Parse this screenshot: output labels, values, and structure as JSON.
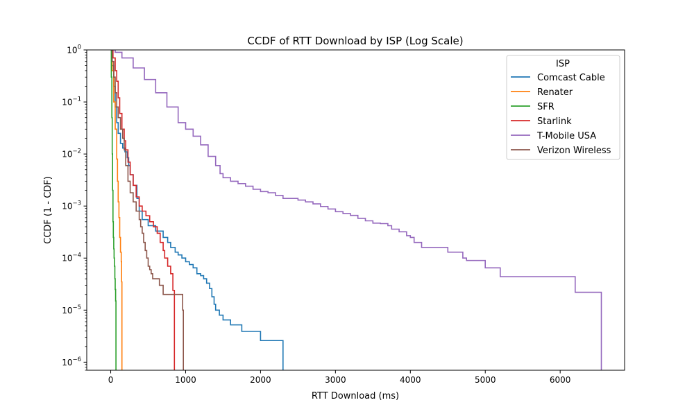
{
  "chart_data": {
    "type": "line",
    "title": "CCDF of RTT Download by ISP (Log Scale)",
    "xlabel": "RTT Download (ms)",
    "ylabel": "CCDF (1 - CDF)",
    "xlim": [
      -320,
      6860
    ],
    "ylim": [
      7e-07,
      1
    ],
    "y_scale": "log",
    "step": true,
    "grid": false,
    "x_ticks": [
      0,
      1000,
      2000,
      3000,
      4000,
      5000,
      6000
    ],
    "x_tick_labels": [
      "0",
      "1000",
      "2000",
      "3000",
      "4000",
      "5000",
      "6000"
    ],
    "y_ticks": [
      1e-06,
      1e-05,
      0.0001,
      0.001,
      0.01,
      0.1,
      1
    ],
    "y_tick_base": [
      "10",
      "10",
      "10",
      "10",
      "10",
      "10",
      "10"
    ],
    "y_tick_exp": [
      "−6",
      "−5",
      "−4",
      "−3",
      "−2",
      "−1",
      "0"
    ],
    "y_tick_plain": [
      null,
      null,
      null,
      null,
      null,
      null,
      "0"
    ],
    "legend": {
      "title": "ISP",
      "position": "top-right"
    },
    "series": [
      {
        "name": "Comcast Cable",
        "color": "#1f77b4",
        "points": [
          [
            0,
            1
          ],
          [
            20,
            0.5
          ],
          [
            40,
            0.2
          ],
          [
            60,
            0.08
          ],
          [
            80,
            0.04
          ],
          [
            100,
            0.025
          ],
          [
            130,
            0.016
          ],
          [
            160,
            0.013
          ],
          [
            190,
            0.011
          ],
          [
            220,
            0.0085
          ],
          [
            240,
            0.006
          ],
          [
            260,
            0.004
          ],
          [
            300,
            0.0025
          ],
          [
            350,
            0.0014
          ],
          [
            380,
            0.0008
          ],
          [
            420,
            0.00055
          ],
          [
            500,
            0.00042
          ],
          [
            600,
            0.00033
          ],
          [
            700,
            0.00025
          ],
          [
            760,
            0.0002
          ],
          [
            800,
            0.00016
          ],
          [
            860,
            0.00013
          ],
          [
            900,
            0.000115
          ],
          [
            950,
            0.0001
          ],
          [
            1000,
            8.5e-05
          ],
          [
            1050,
            7.5e-05
          ],
          [
            1100,
            6.5e-05
          ],
          [
            1150,
            5e-05
          ],
          [
            1200,
            4.6e-05
          ],
          [
            1240,
            4e-05
          ],
          [
            1280,
            3.3e-05
          ],
          [
            1320,
            2.6e-05
          ],
          [
            1350,
            1.8e-05
          ],
          [
            1380,
            1.3e-05
          ],
          [
            1400,
            1e-05
          ],
          [
            1450,
            8e-06
          ],
          [
            1500,
            6.5e-06
          ],
          [
            1600,
            5.2e-06
          ],
          [
            1750,
            3.9e-06
          ],
          [
            2000,
            2.6e-06
          ],
          [
            2300,
            1.3e-06
          ],
          [
            2300,
            7e-07
          ]
        ]
      },
      {
        "name": "Renater",
        "color": "#ff7f0e",
        "points": [
          [
            0,
            1
          ],
          [
            20,
            0.4
          ],
          [
            40,
            0.1
          ],
          [
            60,
            0.03
          ],
          [
            80,
            0.008
          ],
          [
            90,
            0.003
          ],
          [
            100,
            0.0012
          ],
          [
            110,
            0.0006
          ],
          [
            120,
            0.00025
          ],
          [
            130,
            0.00013
          ],
          [
            140,
            8.5e-05
          ],
          [
            145,
            3.5e-05
          ],
          [
            150,
            1.2e-05
          ],
          [
            150,
            7e-07
          ]
        ]
      },
      {
        "name": "SFR",
        "color": "#2ca02c",
        "points": [
          [
            0,
            1
          ],
          [
            8,
            0.3
          ],
          [
            15,
            0.05
          ],
          [
            20,
            0.01
          ],
          [
            25,
            0.002
          ],
          [
            30,
            0.0005
          ],
          [
            35,
            0.00025
          ],
          [
            40,
            0.00015
          ],
          [
            45,
            0.0001
          ],
          [
            50,
            7e-05
          ],
          [
            55,
            4e-05
          ],
          [
            60,
            2.5e-05
          ],
          [
            65,
            1.5e-05
          ],
          [
            70,
            8e-06
          ],
          [
            70,
            7e-07
          ]
        ]
      },
      {
        "name": "Starlink",
        "color": "#d62728",
        "points": [
          [
            0,
            1
          ],
          [
            30,
            0.7
          ],
          [
            60,
            0.4
          ],
          [
            80,
            0.25
          ],
          [
            100,
            0.12
          ],
          [
            120,
            0.06
          ],
          [
            150,
            0.03
          ],
          [
            180,
            0.018
          ],
          [
            200,
            0.012
          ],
          [
            230,
            0.007
          ],
          [
            260,
            0.004
          ],
          [
            300,
            0.0025
          ],
          [
            340,
            0.0015
          ],
          [
            380,
            0.001
          ],
          [
            420,
            0.0008
          ],
          [
            470,
            0.00065
          ],
          [
            520,
            0.0005
          ],
          [
            570,
            0.0004
          ],
          [
            620,
            0.0003
          ],
          [
            660,
            0.0002
          ],
          [
            700,
            0.00014
          ],
          [
            720,
            0.0001
          ],
          [
            760,
            7e-05
          ],
          [
            800,
            5e-05
          ],
          [
            830,
            4e-05
          ],
          [
            830,
            2.4e-05
          ],
          [
            850,
            2.4e-05
          ],
          [
            850,
            7e-07
          ]
        ]
      },
      {
        "name": "T-Mobile USA",
        "color": "#9467bd",
        "points": [
          [
            0,
            1
          ],
          [
            60,
            0.9
          ],
          [
            150,
            0.7
          ],
          [
            300,
            0.45
          ],
          [
            450,
            0.27
          ],
          [
            600,
            0.15
          ],
          [
            750,
            0.08
          ],
          [
            900,
            0.04
          ],
          [
            1000,
            0.03
          ],
          [
            1100,
            0.022
          ],
          [
            1200,
            0.015
          ],
          [
            1300,
            0.009
          ],
          [
            1400,
            0.006
          ],
          [
            1460,
            0.0042
          ],
          [
            1500,
            0.0035
          ],
          [
            1600,
            0.003
          ],
          [
            1700,
            0.0027
          ],
          [
            1800,
            0.0024
          ],
          [
            1900,
            0.0021
          ],
          [
            2000,
            0.0019
          ],
          [
            2100,
            0.0018
          ],
          [
            2200,
            0.0016
          ],
          [
            2300,
            0.0014
          ],
          [
            2400,
            0.0014
          ],
          [
            2500,
            0.0013
          ],
          [
            2600,
            0.0012
          ],
          [
            2700,
            0.0011
          ],
          [
            2800,
            0.00098
          ],
          [
            2900,
            0.00088
          ],
          [
            3000,
            0.00078
          ],
          [
            3100,
            0.00072
          ],
          [
            3200,
            0.00066
          ],
          [
            3300,
            0.00058
          ],
          [
            3400,
            0.00052
          ],
          [
            3500,
            0.00047
          ],
          [
            3600,
            0.00046
          ],
          [
            3700,
            0.00042
          ],
          [
            3750,
            0.00036
          ],
          [
            3850,
            0.00032
          ],
          [
            3950,
            0.00027
          ],
          [
            4000,
            0.00025
          ],
          [
            4050,
            0.0002
          ],
          [
            4150,
            0.00016
          ],
          [
            4300,
            0.00016
          ],
          [
            4500,
            0.00016
          ],
          [
            4500,
            0.00013
          ],
          [
            4700,
            0.00013
          ],
          [
            4700,
            0.0001
          ],
          [
            4750,
            0.0001
          ],
          [
            4750,
            9e-05
          ],
          [
            5000,
            9e-05
          ],
          [
            5000,
            6.5e-05
          ],
          [
            5200,
            6.5e-05
          ],
          [
            5200,
            4.4e-05
          ],
          [
            6200,
            4.4e-05
          ],
          [
            6200,
            2.2e-05
          ],
          [
            6550,
            2.2e-05
          ],
          [
            6550,
            7e-07
          ]
        ]
      },
      {
        "name": "Verizon Wireless",
        "color": "#8c564b",
        "points": [
          [
            0,
            1
          ],
          [
            20,
            0.6
          ],
          [
            40,
            0.3
          ],
          [
            60,
            0.15
          ],
          [
            80,
            0.08
          ],
          [
            100,
            0.05
          ],
          [
            130,
            0.03
          ],
          [
            160,
            0.02
          ],
          [
            180,
            0.012
          ],
          [
            200,
            0.006
          ],
          [
            230,
            0.003
          ],
          [
            260,
            0.0018
          ],
          [
            300,
            0.0012
          ],
          [
            340,
            0.0008
          ],
          [
            380,
            0.00055
          ],
          [
            400,
            0.0004
          ],
          [
            420,
            0.0003
          ],
          [
            440,
            0.0002
          ],
          [
            460,
            0.00014
          ],
          [
            480,
            0.0001
          ],
          [
            500,
            7e-05
          ],
          [
            520,
            6e-05
          ],
          [
            540,
            5e-05
          ],
          [
            560,
            4e-05
          ],
          [
            650,
            4e-05
          ],
          [
            650,
            3e-05
          ],
          [
            700,
            3e-05
          ],
          [
            700,
            2e-05
          ],
          [
            960,
            2e-05
          ],
          [
            960,
            1e-05
          ],
          [
            970,
            1e-05
          ],
          [
            970,
            7e-07
          ]
        ]
      }
    ]
  }
}
